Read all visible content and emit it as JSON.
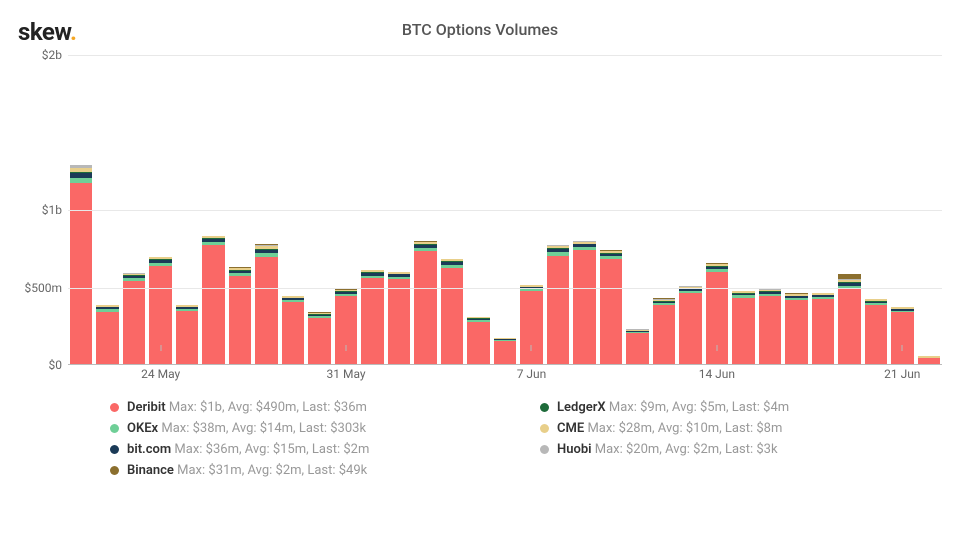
{
  "logo": {
    "text": "skew",
    "dot": "."
  },
  "title": "BTC Options Volumes",
  "chart": {
    "type": "stacked-bar",
    "ymax": 2000,
    "background_color": "#ffffff",
    "grid_color": "#e8e8e8",
    "axis_color": "#bbbbbb",
    "tick_font_size": 12,
    "tick_color": "#666666",
    "y_ticks": [
      {
        "value": 0,
        "label": "$0"
      },
      {
        "value": 500,
        "label": "$500m"
      },
      {
        "value": 1000,
        "label": "$1b"
      },
      {
        "value": 2000,
        "label": "$2b"
      }
    ],
    "x_ticks": [
      {
        "index": 3,
        "label": "24 May"
      },
      {
        "index": 10,
        "label": "31 May"
      },
      {
        "index": 17,
        "label": "7 Jun"
      },
      {
        "index": 24,
        "label": "14 Jun"
      },
      {
        "index": 31,
        "label": "21 Jun"
      }
    ],
    "series": [
      {
        "key": "deribit",
        "name": "Deribit",
        "color": "#fa6866",
        "stats": "Max: $1b, Avg: $490m, Last: $36m"
      },
      {
        "key": "okex",
        "name": "OKEx",
        "color": "#6fcf97",
        "stats": "Max: $38m, Avg: $14m, Last: $303k"
      },
      {
        "key": "bitcom",
        "name": "bit.com",
        "color": "#1b3a57",
        "stats": "Max: $36m, Avg: $15m, Last: $2m"
      },
      {
        "key": "binance",
        "name": "Binance",
        "color": "#8b6f2e",
        "stats": "Max: $31m, Avg: $2m, Last: $49k"
      },
      {
        "key": "ledgerx",
        "name": "LedgerX",
        "color": "#1e6b3a",
        "stats": "Max: $9m, Avg: $5m, Last: $4m"
      },
      {
        "key": "cme",
        "name": "CME",
        "color": "#e8cf8a",
        "stats": "Max: $28m, Avg: $10m, Last: $8m"
      },
      {
        "key": "huobi",
        "name": "Huobi",
        "color": "#b8b8b8",
        "stats": "Max: $20m, Avg: $2m, Last: $3k"
      }
    ],
    "legend_order": [
      "deribit",
      "ledgerx",
      "okex",
      "cme",
      "bitcom",
      "huobi",
      "binance"
    ],
    "stack_order": [
      "deribit",
      "okex",
      "bitcom",
      "ledgerx",
      "cme",
      "huobi",
      "binance"
    ],
    "bars": [
      {
        "deribit": 1170,
        "okex": 34,
        "bitcom": 32,
        "ledgerx": 8,
        "cme": 24,
        "huobi": 18,
        "binance": 2
      },
      {
        "deribit": 335,
        "okex": 18,
        "bitcom": 14,
        "ledgerx": 4,
        "cme": 10,
        "huobi": 3,
        "binance": 1
      },
      {
        "deribit": 540,
        "okex": 16,
        "bitcom": 14,
        "ledgerx": 5,
        "cme": 10,
        "huobi": 3,
        "binance": 1
      },
      {
        "deribit": 635,
        "okex": 20,
        "bitcom": 18,
        "ledgerx": 6,
        "cme": 12,
        "huobi": 3,
        "binance": 2
      },
      {
        "deribit": 345,
        "okex": 12,
        "bitcom": 10,
        "ledgerx": 4,
        "cme": 8,
        "huobi": 2,
        "binance": 1
      },
      {
        "deribit": 770,
        "okex": 20,
        "bitcom": 18,
        "ledgerx": 6,
        "cme": 12,
        "huobi": 4,
        "binance": 2
      },
      {
        "deribit": 570,
        "okex": 18,
        "bitcom": 16,
        "ledgerx": 5,
        "cme": 12,
        "huobi": 3,
        "binance": 2
      },
      {
        "deribit": 690,
        "okex": 26,
        "bitcom": 22,
        "ledgerx": 7,
        "cme": 22,
        "huobi": 5,
        "binance": 2
      },
      {
        "deribit": 400,
        "okex": 14,
        "bitcom": 12,
        "ledgerx": 4,
        "cme": 10,
        "huobi": 2,
        "binance": 1
      },
      {
        "deribit": 300,
        "okex": 10,
        "bitcom": 10,
        "ledgerx": 3,
        "cme": 8,
        "huobi": 2,
        "binance": 1
      },
      {
        "deribit": 440,
        "okex": 14,
        "bitcom": 12,
        "ledgerx": 4,
        "cme": 10,
        "huobi": 2,
        "binance": 1
      },
      {
        "deribit": 555,
        "okex": 18,
        "bitcom": 16,
        "ledgerx": 5,
        "cme": 12,
        "huobi": 3,
        "binance": 2
      },
      {
        "deribit": 550,
        "okex": 16,
        "bitcom": 14,
        "ledgerx": 5,
        "cme": 10,
        "huobi": 3,
        "binance": 1
      },
      {
        "deribit": 730,
        "okex": 20,
        "bitcom": 18,
        "ledgerx": 6,
        "cme": 14,
        "huobi": 4,
        "binance": 2
      },
      {
        "deribit": 620,
        "okex": 20,
        "bitcom": 18,
        "ledgerx": 6,
        "cme": 14,
        "huobi": 3,
        "binance": 2
      },
      {
        "deribit": 275,
        "okex": 10,
        "bitcom": 8,
        "ledgerx": 3,
        "cme": 6,
        "huobi": 2,
        "binance": 1
      },
      {
        "deribit": 148,
        "okex": 6,
        "bitcom": 6,
        "ledgerx": 2,
        "cme": 4,
        "huobi": 1,
        "binance": 1
      },
      {
        "deribit": 470,
        "okex": 14,
        "bitcom": 12,
        "ledgerx": 4,
        "cme": 10,
        "huobi": 3,
        "binance": 1
      },
      {
        "deribit": 700,
        "okex": 22,
        "bitcom": 20,
        "ledgerx": 7,
        "cme": 16,
        "huobi": 4,
        "binance": 2
      },
      {
        "deribit": 740,
        "okex": 18,
        "bitcom": 16,
        "ledgerx": 5,
        "cme": 12,
        "huobi": 3,
        "binance": 2
      },
      {
        "deribit": 680,
        "okex": 18,
        "bitcom": 16,
        "ledgerx": 5,
        "cme": 12,
        "huobi": 3,
        "binance": 2
      },
      {
        "deribit": 200,
        "okex": 8,
        "bitcom": 6,
        "ledgerx": 3,
        "cme": 6,
        "huobi": 2,
        "binance": 1
      },
      {
        "deribit": 380,
        "okex": 12,
        "bitcom": 10,
        "ledgerx": 4,
        "cme": 8,
        "huobi": 10,
        "binance": 1
      },
      {
        "deribit": 460,
        "okex": 14,
        "bitcom": 12,
        "ledgerx": 4,
        "cme": 10,
        "huobi": 3,
        "binance": 1
      },
      {
        "deribit": 595,
        "okex": 18,
        "bitcom": 16,
        "ledgerx": 5,
        "cme": 12,
        "huobi": 3,
        "binance": 2
      },
      {
        "deribit": 430,
        "okex": 14,
        "bitcom": 12,
        "ledgerx": 4,
        "cme": 10,
        "huobi": 3,
        "binance": 1
      },
      {
        "deribit": 440,
        "okex": 14,
        "bitcom": 12,
        "ledgerx": 4,
        "cme": 10,
        "huobi": 3,
        "binance": 1
      },
      {
        "deribit": 415,
        "okex": 12,
        "bitcom": 12,
        "ledgerx": 4,
        "cme": 10,
        "huobi": 3,
        "binance": 1
      },
      {
        "deribit": 420,
        "okex": 12,
        "bitcom": 12,
        "ledgerx": 4,
        "cme": 10,
        "huobi": 3,
        "binance": 1
      },
      {
        "deribit": 490,
        "okex": 18,
        "bitcom": 16,
        "ledgerx": 6,
        "cme": 14,
        "huobi": 6,
        "binance": 30
      },
      {
        "deribit": 380,
        "okex": 12,
        "bitcom": 12,
        "ledgerx": 4,
        "cme": 10,
        "huobi": 3,
        "binance": 1
      },
      {
        "deribit": 335,
        "okex": 10,
        "bitcom": 10,
        "ledgerx": 4,
        "cme": 8,
        "huobi": 2,
        "binance": 1
      },
      {
        "deribit": 36,
        "okex": 0.3,
        "bitcom": 2,
        "ledgerx": 4,
        "cme": 8,
        "huobi": 0,
        "binance": 0
      }
    ]
  }
}
